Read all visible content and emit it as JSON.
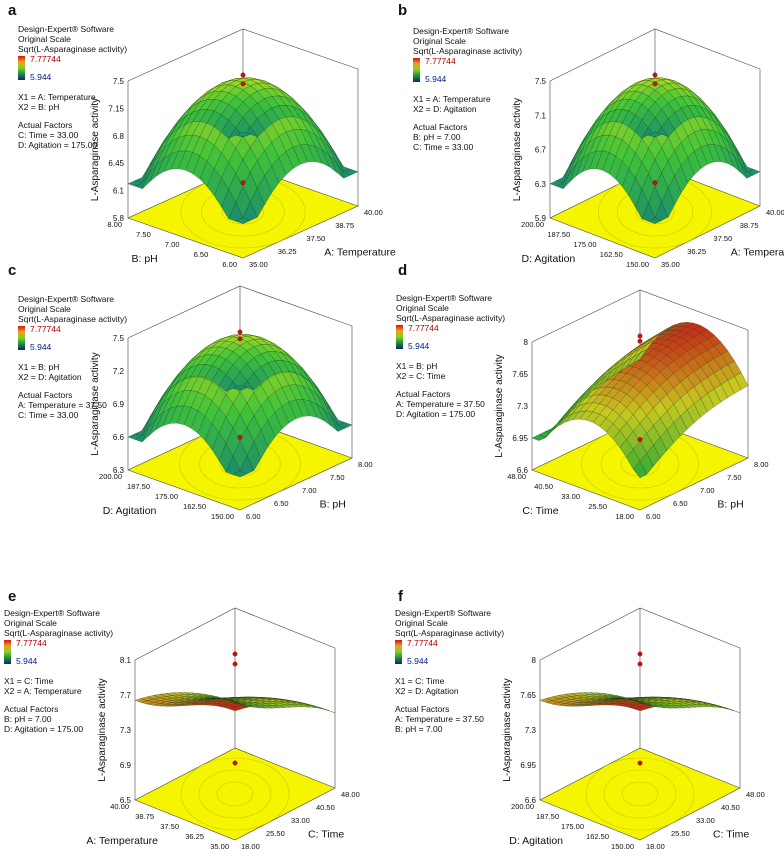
{
  "panels": [
    {
      "letter": "a",
      "software": "Design-Expert® Software",
      "scale": "Original Scale",
      "response": "Sqrt(L-Asparaginase activity)",
      "hi": "7.77744",
      "lo": "5.944",
      "x1": "X1 = A: Temperature",
      "x2": "X2 = B: pH",
      "actual": "Actual Factors",
      "f1": "C: Time = 33.00",
      "f2": "D: Agitation = 175.00"
    },
    {
      "letter": "b",
      "software": "Design-Expert® Software",
      "scale": "Original Scale",
      "response": "Sqrt(L-Asparaginase activity)",
      "hi": "7.77744",
      "lo": "5.944",
      "x1": "X1 = A: Temperature",
      "x2": "X2 = D: Agitation",
      "actual": "Actual Factors",
      "f1": "B: pH = 7.00",
      "f2": "C: Time = 33.00"
    },
    {
      "letter": "c",
      "software": "Design-Expert® Software",
      "scale": "Original Scale",
      "response": "Sqrt(L-Asparaginase activity)",
      "hi": "7.77744",
      "lo": "5.944",
      "x1": "X1 = B: pH",
      "x2": "X2 = D: Agitation",
      "actual": "Actual Factors",
      "f1": "A: Temperature = 37.50",
      "f2": "C: Time = 33.00"
    },
    {
      "letter": "d",
      "software": "Design-Expert® Software",
      "scale": "Original Scale",
      "response": "Sqrt(L-Asparaginase activity)",
      "hi": "7.77744",
      "lo": "5.944",
      "x1": "X1 = B: pH",
      "x2": "X2 = C: Time",
      "actual": "Actual Factors",
      "f1": "A: Temperature = 37.50",
      "f2": "D: Agitation = 175.00"
    },
    {
      "letter": "e",
      "software": "Design-Expert® Software",
      "scale": "Original Scale",
      "response": "Sqrt(L-Asparaginase activity)",
      "hi": "7.77744",
      "lo": "5.944",
      "x1": "X1 = C: Time",
      "x2": "X2 = A: Temperature",
      "actual": "Actual Factors",
      "f1": "B: pH = 7.00",
      "f2": "D: Agitation = 175.00"
    },
    {
      "letter": "f",
      "software": "Design-Expert® Software",
      "scale": "Original Scale",
      "response": "Sqrt(L-Asparaginase activity)",
      "hi": "7.77744",
      "lo": "5.944",
      "x1": "X1 = C: Time",
      "x2": "X2 = D: Agitation",
      "actual": "Actual Factors",
      "f1": "A: Temperature = 37.50",
      "f2": "B: pH = 7.00"
    }
  ],
  "colors": {
    "floor": "#f5f500",
    "surface_low": "#1f9a3a",
    "surface_mid": "#7dd320",
    "surface_high": "#c81414",
    "axis": "#444444"
  },
  "chart_data": [
    {
      "type": "surface",
      "title": "a",
      "zlabel": "L-Asparaginase activity",
      "zticks": [
        "5.8",
        "6.1",
        "6.45",
        "6.8",
        "7.15",
        "7.5"
      ],
      "zlim": [
        5.8,
        7.5
      ],
      "right_axis": {
        "label": "A: Temperature",
        "ticks": [
          "35.00",
          "36.25",
          "37.50",
          "38.75",
          "40.00"
        ]
      },
      "left_axis": {
        "label": "B: pH",
        "ticks": [
          "6.00",
          "6.50",
          "7.00",
          "7.50",
          "8.00"
        ]
      },
      "shape": "dome",
      "colormap": "green"
    },
    {
      "type": "surface",
      "title": "b",
      "zlabel": "L-Asparaginase activity",
      "zticks": [
        "5.9",
        "6.3",
        "6.7",
        "7.1",
        "7.5"
      ],
      "zlim": [
        5.9,
        7.5
      ],
      "right_axis": {
        "label": "A: Temperature",
        "ticks": [
          "35.00",
          "36.25",
          "37.50",
          "38.75",
          "40.00"
        ]
      },
      "left_axis": {
        "label": "D: Agitation",
        "ticks": [
          "150.00",
          "162.50",
          "175.00",
          "187.50",
          "200.00"
        ]
      },
      "shape": "dome",
      "colormap": "green"
    },
    {
      "type": "surface",
      "title": "c",
      "zlabel": "L-Asparaginase activity",
      "zticks": [
        "6.3",
        "6.6",
        "6.9",
        "7.2",
        "7.5"
      ],
      "zlim": [
        6.3,
        7.5
      ],
      "right_axis": {
        "label": "B: pH",
        "ticks": [
          "6.00",
          "6.50",
          "7.00",
          "7.50",
          "8.00"
        ]
      },
      "left_axis": {
        "label": "D: Agitation",
        "ticks": [
          "150.00",
          "162.50",
          "175.00",
          "187.50",
          "200.00"
        ]
      },
      "shape": "dome",
      "colormap": "green"
    },
    {
      "type": "surface",
      "title": "d",
      "zlabel": "L-Asparaginase activity",
      "zticks": [
        "6.6",
        "6.95",
        "7.3",
        "7.65",
        "8"
      ],
      "zlim": [
        6.6,
        8.0
      ],
      "right_axis": {
        "label": "B: pH",
        "ticks": [
          "6.00",
          "6.50",
          "7.00",
          "7.50",
          "8.00"
        ]
      },
      "left_axis": {
        "label": "C: Time",
        "ticks": [
          "18.00",
          "25.50",
          "33.00",
          "40.50",
          "48.00"
        ]
      },
      "shape": "saddle-rising",
      "colormap": "green-red"
    },
    {
      "type": "surface",
      "title": "e",
      "zlabel": "L-Asparaginase activity",
      "zticks": [
        "6.5",
        "6.9",
        "7.3",
        "7.7",
        "8.1"
      ],
      "zlim": [
        6.5,
        8.1
      ],
      "right_axis": {
        "label": "C: Time",
        "ticks": [
          "18.00",
          "25.50",
          "33.00",
          "40.50",
          "48.00"
        ]
      },
      "left_axis": {
        "label": "A: Temperature",
        "ticks": [
          "35.00",
          "36.25",
          "37.50",
          "38.75",
          "40.00"
        ]
      },
      "shape": "saddle-falling",
      "colormap": "red-green"
    },
    {
      "type": "surface",
      "title": "f",
      "zlabel": "L-Asparaginase activity",
      "zticks": [
        "6.6",
        "6.95",
        "7.3",
        "7.65",
        "8"
      ],
      "zlim": [
        6.6,
        8.0
      ],
      "right_axis": {
        "label": "C: Time",
        "ticks": [
          "18.00",
          "25.50",
          "33.00",
          "40.50",
          "48.00"
        ]
      },
      "left_axis": {
        "label": "D: Agitation",
        "ticks": [
          "150.00",
          "162.50",
          "175.00",
          "187.50",
          "200.00"
        ]
      },
      "shape": "saddle-falling",
      "colormap": "red-green"
    }
  ]
}
